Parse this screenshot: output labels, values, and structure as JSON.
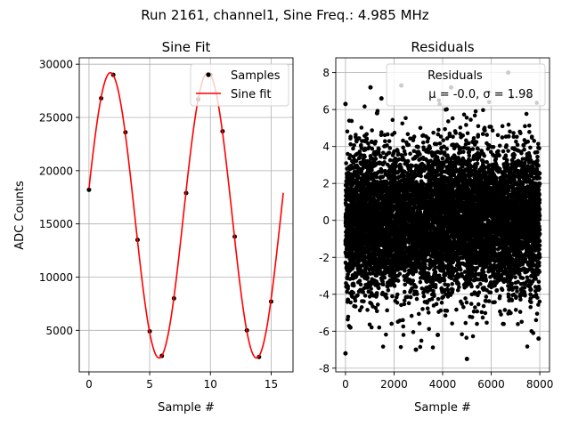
{
  "figure": {
    "suptitle": "Run 2161, channel1, Sine Freq.: 4.985 MHz"
  },
  "chart_data": [
    {
      "type": "scatter",
      "title": "Sine Fit",
      "xlabel": "Sample #",
      "ylabel": "ADC Counts",
      "xlim": [
        -0.8,
        16.8
      ],
      "ylim": [
        1100,
        30600
      ],
      "xticks": [
        0,
        5,
        10,
        15
      ],
      "yticks": [
        5000,
        10000,
        15000,
        20000,
        25000,
        30000
      ],
      "grid": true,
      "legend": {
        "position": "top-right",
        "entries": [
          {
            "label": "Samples",
            "marker": "dot",
            "color": "#000000"
          },
          {
            "label": "Sine fit",
            "marker": "line",
            "color": "#ff0000"
          }
        ]
      },
      "series": [
        {
          "name": "Samples",
          "kind": "points",
          "color": "#000000",
          "x": [
            0,
            1,
            2,
            3,
            4,
            5,
            6,
            7,
            8,
            9,
            10,
            11,
            12,
            13,
            14,
            15
          ],
          "y": [
            18200,
            26800,
            29000,
            23600,
            13500,
            4900,
            2600,
            8000,
            17900,
            26700,
            29000,
            23700,
            13800,
            5000,
            2500,
            7700
          ]
        },
        {
          "name": "Sine fit",
          "kind": "line",
          "color": "#ff0000",
          "model": {
            "offset": 15800,
            "amplitude": 13400,
            "period": 8.02,
            "phase_rad": 0.19,
            "x_start": 0,
            "x_end": 16
          }
        }
      ]
    },
    {
      "type": "scatter",
      "title": "Residuals",
      "xlabel": "Sample #",
      "ylabel": "",
      "xlim": [
        -400,
        8400
      ],
      "ylim": [
        -8.2,
        8.8
      ],
      "xticks": [
        0,
        2000,
        4000,
        6000,
        8000
      ],
      "yticks": [
        -8,
        -6,
        -4,
        -2,
        0,
        2,
        4,
        6,
        8
      ],
      "grid": true,
      "legend": {
        "position": "top-right",
        "entries": [
          {
            "label": "Residuals",
            "marker": "none"
          },
          {
            "label": "μ = -0.0, σ = 1.98",
            "marker": "none"
          }
        ]
      },
      "series": [
        {
          "name": "Residuals",
          "kind": "points",
          "color": "#000000",
          "distribution": {
            "count": 8000,
            "x_start": 0,
            "x_end": 8000,
            "mean": 0.0,
            "std": 1.98
          },
          "x": [
            0,
            0,
            1030,
            1480,
            2300,
            2900,
            4350,
            5000,
            6700,
            7950,
            100,
            200,
            1300,
            3800
          ],
          "y": [
            6.3,
            -7.2,
            7.2,
            6.6,
            7.3,
            -7.0,
            7.2,
            -7.5,
            8.0,
            -6.4,
            -4.3,
            -5.8,
            5.8,
            -6.2
          ]
        }
      ]
    }
  ]
}
